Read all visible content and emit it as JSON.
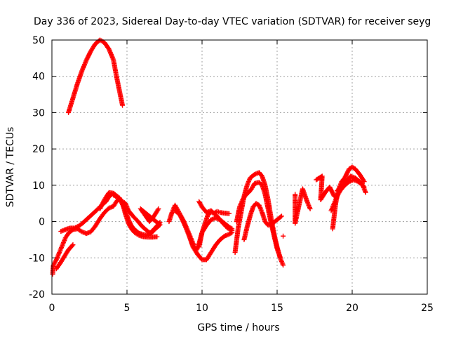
{
  "chart_data": {
    "type": "scatter",
    "title": "Day 336 of 2023, Sidereal Day-to-day VTEC variation (SDTVAR) for receiver seyg",
    "xlabel": "GPS time / hours",
    "ylabel": "SDTVAR / TECUs",
    "xlim": [
      0,
      25
    ],
    "ylim": [
      -20,
      50
    ],
    "xticks": [
      0,
      5,
      10,
      15,
      20,
      25
    ],
    "yticks": [
      -20,
      -10,
      0,
      10,
      20,
      30,
      40,
      50
    ],
    "xtick_labels": [
      "0",
      "5",
      "10",
      "15",
      "20",
      "25"
    ],
    "ytick_labels": [
      "-20",
      "-10",
      "0",
      "10",
      "20",
      "30",
      "40",
      "50"
    ],
    "grid": true,
    "marker": "plus",
    "color": "#ff0000",
    "series": [
      {
        "name": "arc-high",
        "points": [
          [
            1.1,
            30
          ],
          [
            1.4,
            34
          ],
          [
            1.7,
            38
          ],
          [
            2.0,
            41.5
          ],
          [
            2.3,
            44.5
          ],
          [
            2.6,
            47
          ],
          [
            2.9,
            49
          ],
          [
            3.2,
            50
          ],
          [
            3.5,
            49.3
          ],
          [
            3.8,
            47.5
          ],
          [
            4.1,
            44.5
          ],
          [
            4.3,
            40
          ],
          [
            4.5,
            36
          ],
          [
            4.7,
            32
          ]
        ]
      },
      {
        "name": "arc-a",
        "points": [
          [
            0.05,
            -14.5
          ],
          [
            0.1,
            -12
          ],
          [
            0.3,
            -10.5
          ],
          [
            0.5,
            -8.5
          ],
          [
            0.7,
            -6.5
          ],
          [
            0.9,
            -4.5
          ],
          [
            1.1,
            -3.2
          ],
          [
            1.4,
            -2.2
          ],
          [
            1.7,
            -2.0
          ],
          [
            2.0,
            -2.8
          ],
          [
            2.3,
            -3.3
          ],
          [
            2.6,
            -2.8
          ],
          [
            2.9,
            -1.2
          ],
          [
            3.2,
            0.8
          ],
          [
            3.5,
            2.5
          ],
          [
            3.8,
            3.7
          ],
          [
            4.1,
            4.2
          ],
          [
            4.3,
            5.5
          ],
          [
            4.5,
            6.5
          ],
          [
            4.7,
            5
          ],
          [
            4.9,
            2
          ],
          [
            5.1,
            -0.5
          ],
          [
            5.3,
            -2
          ],
          [
            5.5,
            -3
          ],
          [
            5.8,
            -3.8
          ],
          [
            6.1,
            -4.2
          ],
          [
            6.4,
            -4.3
          ],
          [
            6.7,
            -4.3
          ],
          [
            7.0,
            -4.2
          ]
        ]
      },
      {
        "name": "arc-b",
        "points": [
          [
            0.6,
            -2.7
          ],
          [
            0.9,
            -2.2
          ],
          [
            1.2,
            -1.8
          ],
          [
            1.5,
            -1.8
          ],
          [
            1.8,
            -1.2
          ],
          [
            2.0,
            -0.6
          ],
          [
            3.0,
            3.2
          ],
          [
            3.3,
            4.5
          ],
          [
            3.6,
            5.5
          ],
          [
            3.9,
            7.5
          ],
          [
            4.1,
            7.3
          ],
          [
            4.3,
            6.8
          ],
          [
            4.5,
            6.3
          ],
          [
            4.7,
            4.7
          ],
          [
            4.9,
            3
          ],
          [
            5.1,
            0.5
          ],
          [
            5.3,
            -1.2
          ],
          [
            5.5,
            -2.2
          ],
          [
            5.8,
            -3.2
          ],
          [
            6.1,
            -3.6
          ],
          [
            6.4,
            -3.8
          ],
          [
            6.7,
            -2.5
          ],
          [
            7.0,
            -1.2
          ],
          [
            7.2,
            -0.2
          ]
        ]
      },
      {
        "name": "arc-c",
        "points": [
          [
            0.3,
            -13
          ],
          [
            0.5,
            -11.8
          ],
          [
            0.8,
            -9.8
          ],
          [
            1.1,
            -7.8
          ],
          [
            1.4,
            -6.4
          ],
          [
            3.2,
            3.5
          ],
          [
            3.5,
            6
          ],
          [
            3.8,
            8
          ],
          [
            4.1,
            7.8
          ],
          [
            4.4,
            6.8
          ],
          [
            4.6,
            5.8
          ],
          [
            4.9,
            5
          ],
          [
            5.1,
            3
          ],
          [
            5.4,
            1.5
          ],
          [
            5.7,
            0.2
          ],
          [
            6.0,
            -1.3
          ],
          [
            6.3,
            -2.4
          ],
          [
            6.6,
            -3.3
          ],
          [
            6.9,
            -2
          ],
          [
            7.2,
            -0.9
          ],
          [
            5.9,
            3.5
          ],
          [
            6.2,
            1.8
          ],
          [
            6.5,
            0
          ],
          [
            6.8,
            1.5
          ],
          [
            7.1,
            3.5
          ]
        ]
      },
      {
        "name": "arc-d",
        "points": [
          [
            7.8,
            0
          ],
          [
            8.0,
            2.5
          ],
          [
            8.2,
            4.5
          ],
          [
            8.4,
            3
          ],
          [
            8.6,
            1.5
          ],
          [
            8.8,
            0
          ],
          [
            9.0,
            -2
          ],
          [
            9.2,
            -4
          ],
          [
            9.4,
            -6
          ],
          [
            9.6,
            -8
          ],
          [
            9.8,
            -6
          ],
          [
            10.0,
            -3
          ],
          [
            10.2,
            -0.5
          ],
          [
            10.4,
            2
          ],
          [
            10.6,
            2.5
          ],
          [
            10.8,
            2.3
          ],
          [
            11.0,
            2.8
          ],
          [
            11.2,
            2.5
          ],
          [
            11.5,
            2.3
          ],
          [
            11.8,
            2.2
          ]
        ]
      },
      {
        "name": "arc-e",
        "points": [
          [
            8.2,
            3
          ],
          [
            8.5,
            2
          ],
          [
            8.8,
            -0.5
          ],
          [
            9.1,
            -3.5
          ],
          [
            9.4,
            -7
          ],
          [
            9.7,
            -9
          ],
          [
            10.0,
            -10.5
          ],
          [
            10.3,
            -10.5
          ],
          [
            10.6,
            -8.5
          ],
          [
            10.9,
            -6.5
          ],
          [
            11.2,
            -5
          ],
          [
            11.5,
            -4
          ],
          [
            11.8,
            -3.5
          ],
          [
            12.0,
            -3
          ]
        ]
      },
      {
        "name": "arc-f",
        "points": [
          [
            9.8,
            -7
          ],
          [
            10.0,
            -3
          ],
          [
            10.3,
            -1
          ],
          [
            10.6,
            0.5
          ],
          [
            10.9,
            1
          ],
          [
            11.2,
            0.5
          ],
          [
            11.5,
            -0.5
          ],
          [
            11.8,
            -1.5
          ],
          [
            12.0,
            -2
          ]
        ]
      },
      {
        "name": "arc-g",
        "points": [
          [
            9.8,
            5.5
          ],
          [
            10.0,
            4
          ],
          [
            10.3,
            2.5
          ],
          [
            10.6,
            3
          ],
          [
            11.0,
            1.5
          ],
          [
            11.4,
            -0.5
          ],
          [
            11.7,
            -1.8
          ],
          [
            12.0,
            -2.5
          ]
        ]
      },
      {
        "name": "arc-h",
        "points": [
          [
            12.2,
            -8.5
          ],
          [
            12.4,
            -2
          ],
          [
            12.6,
            2.5
          ],
          [
            12.8,
            7
          ],
          [
            13.0,
            10
          ],
          [
            13.2,
            12
          ],
          [
            13.5,
            13
          ],
          [
            13.8,
            13.5
          ],
          [
            14.0,
            12.5
          ],
          [
            14.2,
            10
          ],
          [
            14.4,
            6
          ],
          [
            14.6,
            1
          ],
          [
            14.8,
            -3.5
          ],
          [
            15.0,
            -7
          ],
          [
            15.2,
            -10
          ],
          [
            15.4,
            -12
          ]
        ]
      },
      {
        "name": "arc-i",
        "points": [
          [
            12.3,
            0
          ],
          [
            12.5,
            4
          ],
          [
            12.7,
            6
          ],
          [
            12.9,
            7.2
          ],
          [
            13.1,
            8
          ],
          [
            13.3,
            9
          ],
          [
            13.5,
            10.5
          ],
          [
            13.8,
            10.8
          ],
          [
            14.0,
            10
          ],
          [
            14.2,
            7.5
          ],
          [
            14.4,
            3.5
          ],
          [
            14.6,
            -0.5
          ],
          [
            14.8,
            -4
          ],
          [
            15.0,
            -7.5
          ],
          [
            15.2,
            -9.8
          ]
        ]
      },
      {
        "name": "arc-j",
        "points": [
          [
            12.8,
            -5
          ],
          [
            13.0,
            -1.5
          ],
          [
            13.2,
            1.5
          ],
          [
            13.4,
            4
          ],
          [
            13.6,
            5
          ],
          [
            13.8,
            4.5
          ],
          [
            14.0,
            2.5
          ],
          [
            14.2,
            0
          ],
          [
            14.4,
            -1
          ],
          [
            14.7,
            -0.5
          ],
          [
            15.0,
            0.5
          ],
          [
            15.3,
            1.5
          ]
        ]
      },
      {
        "name": "arc-k",
        "points": [
          [
            15.4,
            -4
          ],
          [
            16.2,
            7.5
          ],
          [
            16.2,
            5.5
          ],
          [
            16.2,
            -0.5
          ],
          [
            16.3,
            1.5
          ],
          [
            16.7,
            9
          ],
          [
            17.0,
            5.5
          ],
          [
            17.2,
            3.5
          ],
          [
            17.6,
            11.5
          ],
          [
            18.0,
            12.5
          ],
          [
            17.9,
            6
          ],
          [
            18.2,
            8
          ],
          [
            18.5,
            9.5
          ],
          [
            18.8,
            7
          ],
          [
            18.7,
            -2
          ],
          [
            18.9,
            5
          ],
          [
            19.1,
            9
          ],
          [
            19.3,
            11
          ],
          [
            19.5,
            12
          ],
          [
            19.8,
            14.5
          ],
          [
            20.0,
            15
          ],
          [
            20.2,
            14.5
          ],
          [
            20.5,
            13
          ],
          [
            20.8,
            11
          ]
        ]
      },
      {
        "name": "arc-l",
        "points": [
          [
            18.6,
            3
          ],
          [
            18.8,
            5
          ],
          [
            19.0,
            7
          ],
          [
            19.2,
            8.5
          ],
          [
            19.5,
            10
          ],
          [
            19.8,
            11
          ],
          [
            20.1,
            11.5
          ],
          [
            20.4,
            11
          ],
          [
            20.7,
            10
          ],
          [
            20.9,
            8
          ],
          [
            19.0,
            8.5
          ],
          [
            19.3,
            9.5
          ],
          [
            19.6,
            11
          ],
          [
            19.9,
            12.5
          ],
          [
            20.2,
            12
          ],
          [
            20.5,
            11
          ],
          [
            20.8,
            9.5
          ]
        ]
      }
    ]
  }
}
